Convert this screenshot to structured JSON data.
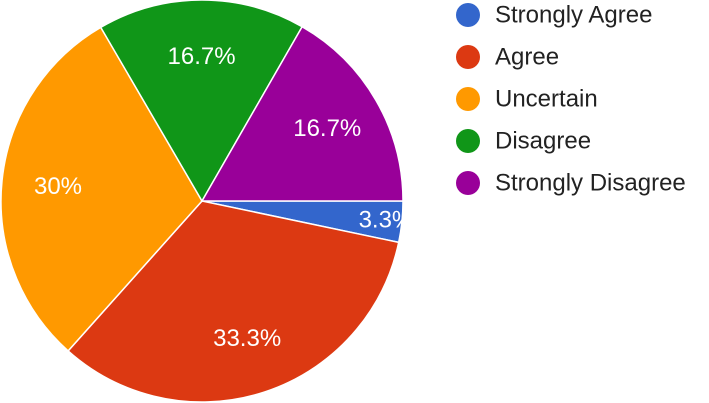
{
  "chart_data": {
    "type": "pie",
    "title": "",
    "legend_position": "top-right",
    "slices": [
      {
        "label": "Strongly Agree",
        "value": 3.3,
        "display": "3.3%",
        "color": "#3366cc"
      },
      {
        "label": "Agree",
        "value": 33.3,
        "display": "33.3%",
        "color": "#dc3912"
      },
      {
        "label": "Uncertain",
        "value": 30,
        "display": "30%",
        "color": "#ff9900"
      },
      {
        "label": "Disagree",
        "value": 16.7,
        "display": "16.7%",
        "color": "#109618"
      },
      {
        "label": "Strongly Disagree",
        "value": 16.7,
        "display": "16.7%",
        "color": "#990099"
      }
    ]
  }
}
